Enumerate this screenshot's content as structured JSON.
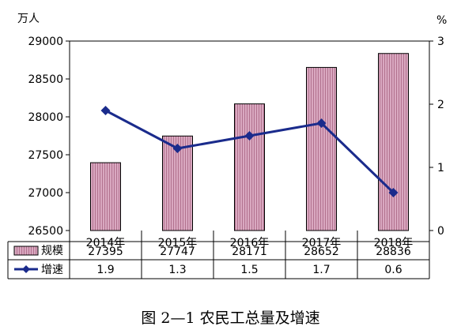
{
  "chart_data": {
    "type": "bar",
    "categories": [
      "2014年",
      "2015年",
      "2016年",
      "2017年",
      "2018年"
    ],
    "y_left_unit": "万人",
    "y_right_unit": "%",
    "ylim_left": [
      26500,
      29000
    ],
    "yticks_left": [
      26500,
      27000,
      27500,
      28000,
      28500,
      29000
    ],
    "ylim_right": [
      0,
      3
    ],
    "yticks_right": [
      0,
      1,
      2,
      3
    ],
    "series": [
      {
        "name": "规模",
        "type": "bar",
        "axis": "left",
        "values": [
          27395,
          27747,
          28171,
          28652,
          28836
        ],
        "value_labels": [
          "27395",
          "27747",
          "28171",
          "28652",
          "28836"
        ]
      },
      {
        "name": "增速",
        "type": "line",
        "axis": "right",
        "values": [
          1.9,
          1.3,
          1.5,
          1.7,
          0.6
        ],
        "value_labels": [
          "1.9",
          "1.3",
          "1.5",
          "1.7",
          "0.6"
        ]
      }
    ],
    "colors": {
      "bar_fill": "#d9a8c0",
      "bar_hatch": "#8a3b5e",
      "bar_stroke": "#000000",
      "line": "#1a2b8c"
    },
    "grid": false,
    "legend": "table-below"
  },
  "caption": "图 2—1  农民工总量及增速"
}
